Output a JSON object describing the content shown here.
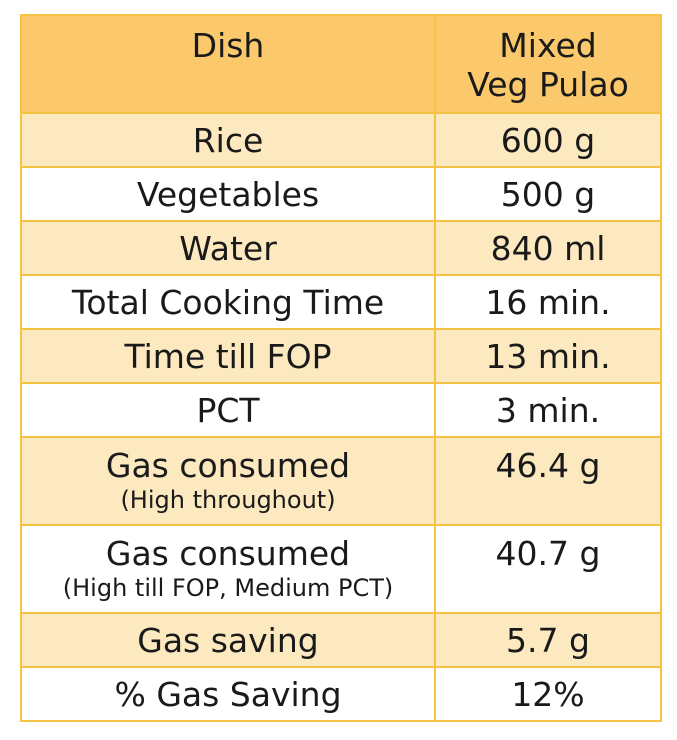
{
  "table": {
    "header": {
      "col1": "Dish",
      "col2_line1": "Mixed",
      "col2_line2": "Veg Pulao"
    },
    "rows": [
      {
        "label": "Rice",
        "value": "600 g"
      },
      {
        "label": "Vegetables",
        "value": "500 g"
      },
      {
        "label": "Water",
        "value": "840 ml"
      },
      {
        "label": "Total Cooking Time",
        "value": "16 min."
      },
      {
        "label": "Time till FOP",
        "value": "13 min."
      },
      {
        "label": "PCT",
        "value": "3 min."
      },
      {
        "label": "Gas consumed",
        "note": "(High throughout)",
        "value": "46.4 g"
      },
      {
        "label": "Gas consumed",
        "note": "(High till FOP, Medium PCT)",
        "value": "40.7 g"
      },
      {
        "label": "Gas saving",
        "value": "5.7 g"
      },
      {
        "label": "% Gas Saving",
        "value": "12%"
      }
    ]
  },
  "colors": {
    "header_bg": "#fbc96c",
    "band_bg": "#fde9c0",
    "border": "#f5c242"
  }
}
